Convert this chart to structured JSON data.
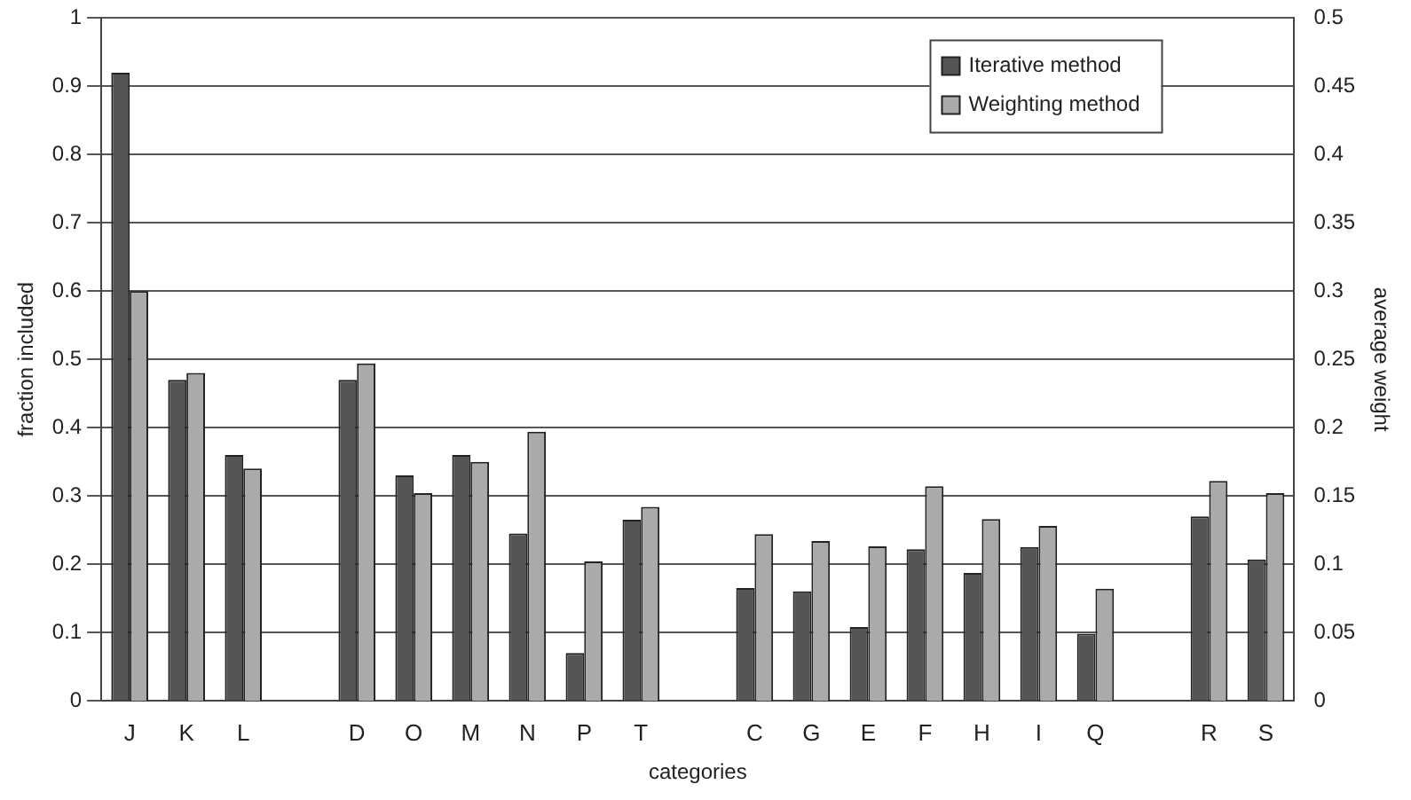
{
  "chart_data": {
    "type": "bar",
    "xlabel": "categories",
    "ylabel": "fraction included",
    "y2label": "average weight",
    "categories": [
      "J",
      "K",
      "L",
      null,
      "D",
      "O",
      "M",
      "N",
      "P",
      "T",
      null,
      "C",
      "G",
      "E",
      "F",
      "H",
      "I",
      "Q",
      null,
      "R",
      "S"
    ],
    "series": [
      {
        "name": "Iterative method",
        "color": "#555555",
        "values": [
          0.92,
          0.47,
          0.36,
          null,
          0.47,
          0.33,
          0.36,
          0.245,
          0.07,
          0.265,
          null,
          0.165,
          0.16,
          0.108,
          0.222,
          0.187,
          0.225,
          0.098,
          null,
          0.27,
          0.207
        ]
      },
      {
        "name": "Weighting method",
        "color": "#aaaaaa",
        "axis": "y2",
        "values": [
          0.3,
          0.24,
          0.17,
          null,
          0.247,
          0.152,
          0.175,
          0.197,
          0.102,
          0.142,
          null,
          0.122,
          0.117,
          0.113,
          0.157,
          0.133,
          0.128,
          0.082,
          null,
          0.161,
          0.152
        ]
      }
    ],
    "ylim": [
      0,
      1
    ],
    "yticks": [
      0,
      0.1,
      0.2,
      0.3,
      0.4,
      0.5,
      0.6,
      0.7,
      0.8,
      0.9,
      1
    ],
    "y2lim": [
      0,
      0.5
    ],
    "y2ticks": [
      0,
      0.05,
      0.1,
      0.15,
      0.2,
      0.25,
      0.3,
      0.35,
      0.4,
      0.45,
      0.5
    ],
    "grid": "y",
    "legend": "top right"
  }
}
